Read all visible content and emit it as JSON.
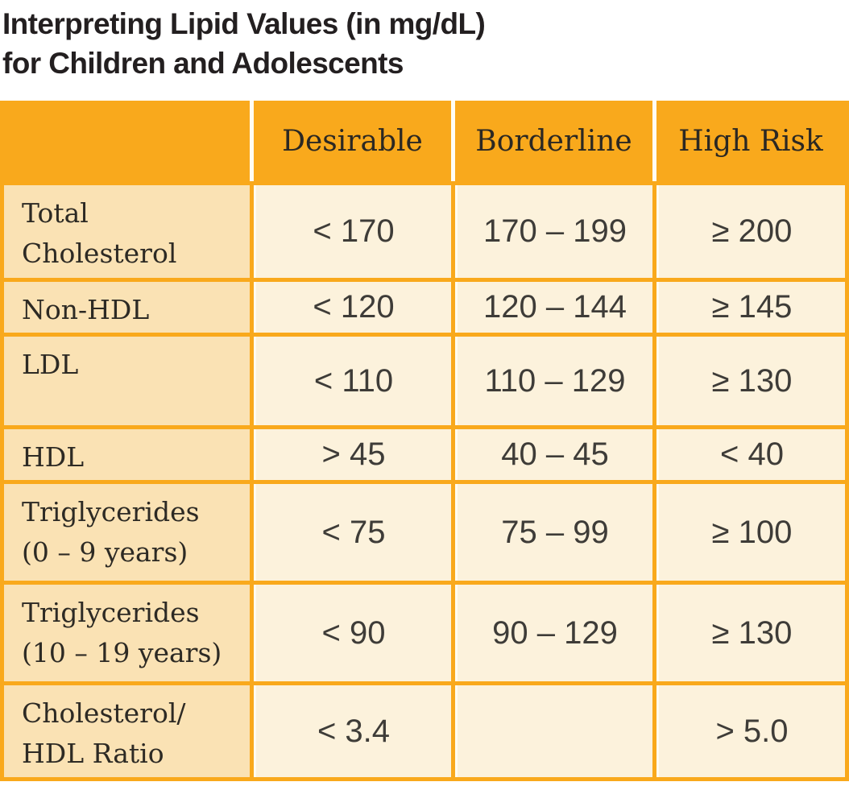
{
  "title": {
    "line1": "Interpreting Lipid Values (in mg/dL)",
    "line2": "for Children and Adolescents"
  },
  "table": {
    "headers": [
      "",
      "Desirable",
      "Borderline",
      "High Risk"
    ],
    "rows": [
      {
        "label": "Total\nCholesterol",
        "desirable": "< 170",
        "borderline": "170 – 199",
        "high_risk": "≥ 200"
      },
      {
        "label": "Non-HDL",
        "desirable": "< 120",
        "borderline": "120 – 144",
        "high_risk": "≥ 145"
      },
      {
        "label": "LDL",
        "desirable": "< 110",
        "borderline": "110 – 129",
        "high_risk": "≥ 130"
      },
      {
        "label": "HDL",
        "desirable": "> 45",
        "borderline": "40 – 45",
        "high_risk": "< 40"
      },
      {
        "label": "Triglycerides\n(0 – 9 years)",
        "desirable": "< 75",
        "borderline": "75 – 99",
        "high_risk": "≥ 100"
      },
      {
        "label": "Triglycerides\n(10 – 19 years)",
        "desirable": "< 90",
        "borderline": "90 – 129",
        "high_risk": "≥ 130"
      },
      {
        "label": "Cholesterol/\nHDL Ratio",
        "desirable": "< 3.4",
        "borderline": "",
        "high_risk": "> 5.0"
      }
    ]
  },
  "colors": {
    "grid_orange": "#F9A91C",
    "label_cell_bg": "#FAE2B4",
    "value_cell_bg": "#FCF2DC",
    "title_text": "#231F20"
  }
}
